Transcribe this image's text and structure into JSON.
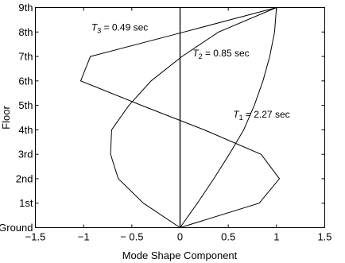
{
  "chart_data": {
    "type": "line",
    "orientation": "horizontal-values",
    "xlabel": "Mode Shape Component",
    "ylabel": "Floor",
    "xlim": [
      -1.5,
      1.5
    ],
    "x_ticks": [
      -1.5,
      -1,
      -0.5,
      0,
      0.5,
      1,
      1.5
    ],
    "x_tick_labels": [
      "−1.5",
      "−1",
      "− 0.5",
      "0",
      "0.5",
      "1",
      "1.5"
    ],
    "y_categories": [
      "Ground",
      "1st",
      "2nd",
      "3rd",
      "4th",
      "5th",
      "6th",
      "7th",
      "8th",
      "9th"
    ],
    "grid": false,
    "legend": "none",
    "zero_line": true,
    "series": [
      {
        "values": [
          0,
          0.18,
          0.35,
          0.51,
          0.66,
          0.77,
          0.86,
          0.93,
          0.98,
          1.0
        ],
        "label_symbol": "T",
        "label_sub": "1",
        "label_rest": " = 2.27 sec",
        "label_at": [
          0.55,
          4.5
        ]
      },
      {
        "values": [
          0,
          -0.38,
          -0.64,
          -0.72,
          -0.71,
          -0.53,
          -0.3,
          0.02,
          0.4,
          1.0
        ],
        "label_symbol": "T",
        "label_sub": "2",
        "label_rest": " = 0.85 sec",
        "label_at": [
          0.13,
          7.0
        ]
      },
      {
        "values": [
          0,
          0.82,
          1.03,
          0.84,
          0.25,
          -0.4,
          -1.03,
          -0.93,
          0.04,
          1.0
        ],
        "label_symbol": "T",
        "label_sub": "3",
        "label_rest": " = 0.49 sec",
        "label_at": [
          -0.92,
          8.05
        ]
      }
    ]
  }
}
